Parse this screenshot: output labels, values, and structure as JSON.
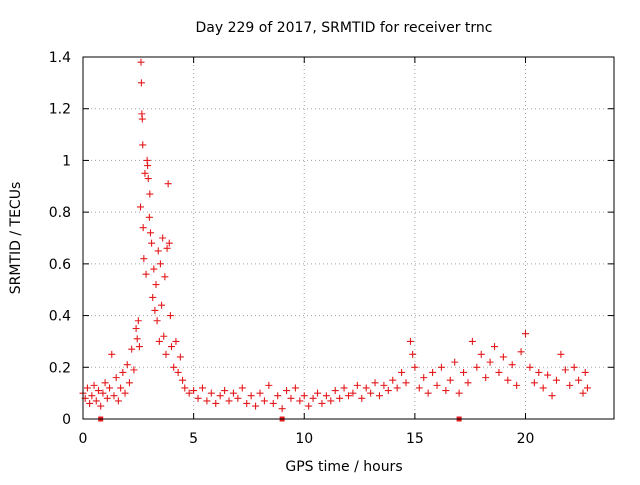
{
  "chart_data": {
    "type": "scatter",
    "title": "Day 229 of 2017, SRMTID for receiver trnc",
    "xlabel": "GPS time / hours",
    "ylabel": "SRMTID / TECUs",
    "xlim": [
      0,
      24
    ],
    "ylim": [
      0,
      1.4
    ],
    "xticks": [
      0,
      5,
      10,
      15,
      20
    ],
    "xtick_labels": [
      "0",
      "5",
      "10",
      "15",
      "20"
    ],
    "yticks": [
      0,
      0.2,
      0.4,
      0.6,
      0.8,
      1.0,
      1.2,
      1.4
    ],
    "ytick_labels": [
      "0",
      "0.2",
      "0.4",
      "0.6",
      "0.8",
      "1",
      "1.2",
      "1.4"
    ],
    "grid": true,
    "marker": "+",
    "color": "#e41a1c",
    "baseline_markers_x": [
      0.8,
      9.0,
      17.0
    ],
    "series": [
      {
        "name": "SRMTID",
        "points": [
          [
            0.0,
            0.1
          ],
          [
            0.1,
            0.08
          ],
          [
            0.2,
            0.12
          ],
          [
            0.3,
            0.06
          ],
          [
            0.4,
            0.09
          ],
          [
            0.5,
            0.13
          ],
          [
            0.6,
            0.07
          ],
          [
            0.7,
            0.11
          ],
          [
            0.8,
            0.05
          ],
          [
            0.9,
            0.1
          ],
          [
            1.0,
            0.14
          ],
          [
            1.1,
            0.08
          ],
          [
            1.2,
            0.12
          ],
          [
            1.3,
            0.25
          ],
          [
            1.4,
            0.09
          ],
          [
            1.5,
            0.16
          ],
          [
            1.6,
            0.07
          ],
          [
            1.7,
            0.12
          ],
          [
            1.8,
            0.18
          ],
          [
            1.9,
            0.1
          ],
          [
            2.0,
            0.21
          ],
          [
            2.1,
            0.14
          ],
          [
            2.2,
            0.27
          ],
          [
            2.3,
            0.19
          ],
          [
            2.4,
            0.35
          ],
          [
            2.45,
            0.31
          ],
          [
            2.5,
            0.38
          ],
          [
            2.55,
            0.28
          ],
          [
            2.6,
            0.82
          ],
          [
            2.62,
            1.38
          ],
          [
            2.64,
            1.3
          ],
          [
            2.66,
            1.18
          ],
          [
            2.68,
            1.16
          ],
          [
            2.7,
            1.06
          ],
          [
            2.72,
            0.74
          ],
          [
            2.75,
            0.62
          ],
          [
            2.8,
            0.95
          ],
          [
            2.85,
            0.56
          ],
          [
            2.9,
            1.0
          ],
          [
            2.92,
            0.98
          ],
          [
            2.95,
            0.93
          ],
          [
            3.0,
            0.78
          ],
          [
            3.02,
            0.87
          ],
          [
            3.05,
            0.72
          ],
          [
            3.1,
            0.68
          ],
          [
            3.15,
            0.47
          ],
          [
            3.2,
            0.58
          ],
          [
            3.25,
            0.42
          ],
          [
            3.3,
            0.52
          ],
          [
            3.35,
            0.38
          ],
          [
            3.4,
            0.65
          ],
          [
            3.45,
            0.3
          ],
          [
            3.5,
            0.6
          ],
          [
            3.55,
            0.44
          ],
          [
            3.6,
            0.7
          ],
          [
            3.65,
            0.32
          ],
          [
            3.7,
            0.55
          ],
          [
            3.75,
            0.25
          ],
          [
            3.8,
            0.66
          ],
          [
            3.85,
            0.91
          ],
          [
            3.9,
            0.68
          ],
          [
            3.95,
            0.4
          ],
          [
            4.0,
            0.28
          ],
          [
            4.1,
            0.2
          ],
          [
            4.2,
            0.3
          ],
          [
            4.3,
            0.18
          ],
          [
            4.4,
            0.24
          ],
          [
            4.5,
            0.15
          ],
          [
            4.6,
            0.12
          ],
          [
            4.8,
            0.1
          ],
          [
            5.0,
            0.11
          ],
          [
            5.2,
            0.08
          ],
          [
            5.4,
            0.12
          ],
          [
            5.6,
            0.07
          ],
          [
            5.8,
            0.1
          ],
          [
            6.0,
            0.06
          ],
          [
            6.2,
            0.09
          ],
          [
            6.4,
            0.11
          ],
          [
            6.6,
            0.07
          ],
          [
            6.8,
            0.1
          ],
          [
            7.0,
            0.08
          ],
          [
            7.2,
            0.12
          ],
          [
            7.4,
            0.06
          ],
          [
            7.6,
            0.09
          ],
          [
            7.8,
            0.05
          ],
          [
            8.0,
            0.1
          ],
          [
            8.2,
            0.07
          ],
          [
            8.4,
            0.13
          ],
          [
            8.6,
            0.06
          ],
          [
            8.8,
            0.09
          ],
          [
            9.0,
            0.04
          ],
          [
            9.2,
            0.11
          ],
          [
            9.4,
            0.08
          ],
          [
            9.6,
            0.12
          ],
          [
            9.8,
            0.07
          ],
          [
            10.0,
            0.09
          ],
          [
            10.2,
            0.05
          ],
          [
            10.4,
            0.08
          ],
          [
            10.6,
            0.1
          ],
          [
            10.8,
            0.06
          ],
          [
            11.0,
            0.09
          ],
          [
            11.2,
            0.07
          ],
          [
            11.4,
            0.11
          ],
          [
            11.6,
            0.08
          ],
          [
            11.8,
            0.12
          ],
          [
            12.0,
            0.09
          ],
          [
            12.2,
            0.1
          ],
          [
            12.4,
            0.13
          ],
          [
            12.6,
            0.08
          ],
          [
            12.8,
            0.12
          ],
          [
            13.0,
            0.1
          ],
          [
            13.2,
            0.14
          ],
          [
            13.4,
            0.09
          ],
          [
            13.6,
            0.13
          ],
          [
            13.8,
            0.11
          ],
          [
            14.0,
            0.15
          ],
          [
            14.2,
            0.12
          ],
          [
            14.4,
            0.18
          ],
          [
            14.6,
            0.14
          ],
          [
            14.8,
            0.3
          ],
          [
            14.9,
            0.25
          ],
          [
            15.0,
            0.2
          ],
          [
            15.2,
            0.12
          ],
          [
            15.4,
            0.16
          ],
          [
            15.6,
            0.1
          ],
          [
            15.8,
            0.18
          ],
          [
            16.0,
            0.13
          ],
          [
            16.2,
            0.2
          ],
          [
            16.4,
            0.11
          ],
          [
            16.6,
            0.15
          ],
          [
            16.8,
            0.22
          ],
          [
            17.0,
            0.1
          ],
          [
            17.2,
            0.18
          ],
          [
            17.4,
            0.14
          ],
          [
            17.6,
            0.3
          ],
          [
            17.8,
            0.2
          ],
          [
            18.0,
            0.25
          ],
          [
            18.2,
            0.16
          ],
          [
            18.4,
            0.22
          ],
          [
            18.6,
            0.28
          ],
          [
            18.8,
            0.18
          ],
          [
            19.0,
            0.24
          ],
          [
            19.2,
            0.15
          ],
          [
            19.4,
            0.21
          ],
          [
            19.6,
            0.13
          ],
          [
            19.8,
            0.26
          ],
          [
            20.0,
            0.33
          ],
          [
            20.2,
            0.2
          ],
          [
            20.4,
            0.14
          ],
          [
            20.6,
            0.18
          ],
          [
            20.8,
            0.12
          ],
          [
            21.0,
            0.17
          ],
          [
            21.2,
            0.09
          ],
          [
            21.4,
            0.15
          ],
          [
            21.6,
            0.25
          ],
          [
            21.8,
            0.19
          ],
          [
            22.0,
            0.13
          ],
          [
            22.2,
            0.2
          ],
          [
            22.4,
            0.15
          ],
          [
            22.6,
            0.1
          ],
          [
            22.7,
            0.18
          ],
          [
            22.8,
            0.12
          ]
        ]
      }
    ]
  }
}
